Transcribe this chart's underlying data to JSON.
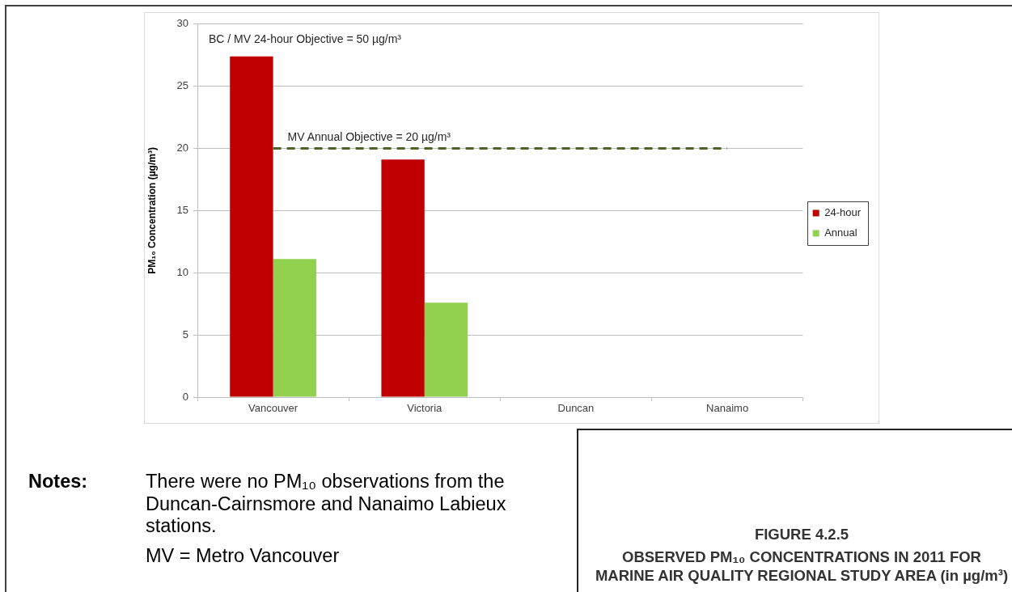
{
  "chart_data": {
    "type": "bar",
    "title": "OBSERVED PM₁₀ CONCENTRATIONS IN 2011 FOR MARINE AIR QUALITY REGIONAL STUDY AREA (in µg/m³)",
    "subtitle": "FIGURE 4.2.5",
    "ylabel": "PM₁₀ Concentration (µg/m³)",
    "categories": [
      "Vancouver",
      "Victoria",
      "Duncan",
      "Nanaimo"
    ],
    "series": [
      {
        "name": "24-hour",
        "color": "#c00000",
        "values": [
          27.4,
          19.1,
          null,
          null
        ]
      },
      {
        "name": "Annual",
        "color": "#92d050",
        "values": [
          11.1,
          7.6,
          null,
          null
        ]
      }
    ],
    "ylim": [
      0,
      30
    ],
    "yticks": [
      0,
      5,
      10,
      15,
      20,
      25,
      30
    ],
    "grid": "y",
    "legend": "right",
    "ref_lines": [
      {
        "axis": "y",
        "value": 20,
        "label": "MV Annual Objective = 20 µg/m³",
        "color": "#4f6228",
        "line_style": "dashed"
      }
    ],
    "annotations": [
      "BC / MV 24-hour Objective = 50 µg/m³",
      "Notes:",
      "There were no PM₁₀ observations from the Duncan-Cairnsmore and Nanaimo Labieux stations.",
      "MV = Metro Vancouver"
    ]
  }
}
